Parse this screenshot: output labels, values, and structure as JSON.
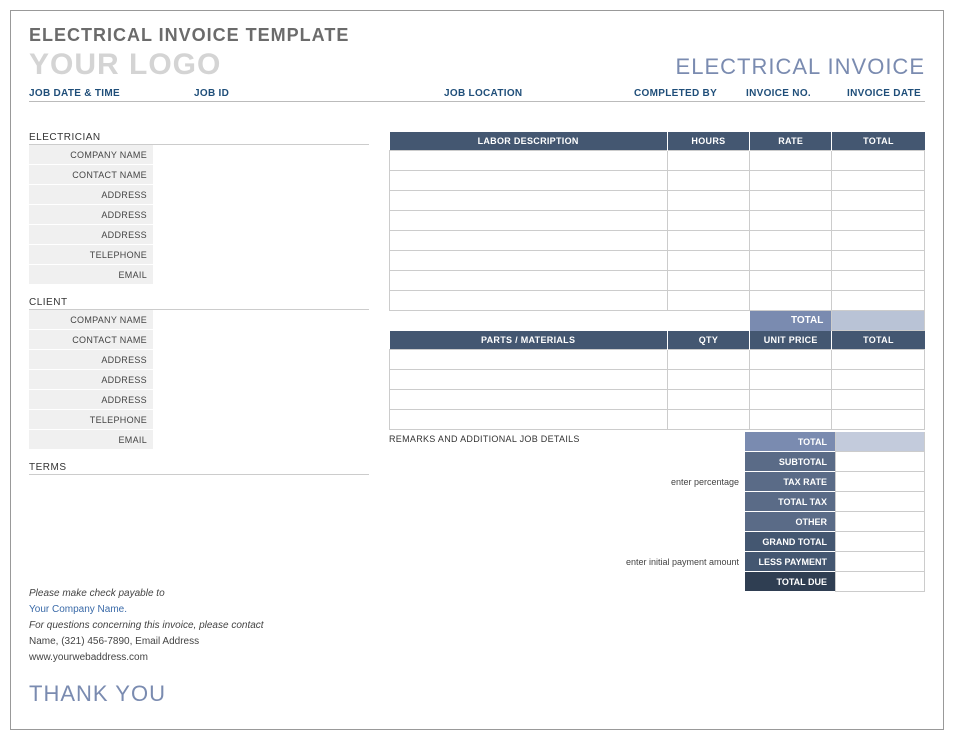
{
  "doc_title": "ELECTRICAL INVOICE TEMPLATE",
  "logo_text": "YOUR LOGO",
  "invoice_title": "ELECTRICAL INVOICE",
  "job_header": {
    "datetime": "JOB DATE & TIME",
    "jobid": "JOB ID",
    "location": "JOB LOCATION",
    "completed": "COMPLETED BY",
    "invno": "INVOICE NO.",
    "invdate": "INVOICE DATE"
  },
  "sections": {
    "electrician": "ELECTRICIAN",
    "client": "CLIENT",
    "terms": "TERMS"
  },
  "fields": {
    "company": "COMPANY NAME",
    "contact": "CONTACT NAME",
    "address": "ADDRESS",
    "telephone": "TELEPHONE",
    "email": "EMAIL"
  },
  "labor": {
    "desc": "LABOR DESCRIPTION",
    "hours": "HOURS",
    "rate": "RATE",
    "total": "TOTAL",
    "total_label": "TOTAL"
  },
  "parts": {
    "desc": "PARTS / MATERIALS",
    "qty": "QTY",
    "unit": "UNIT PRICE",
    "total": "TOTAL"
  },
  "remarks_label": "REMARKS AND ADDITIONAL JOB DETAILS",
  "hints": {
    "percentage": "enter percentage",
    "initial": "enter initial payment amount"
  },
  "summary": {
    "total": "TOTAL",
    "subtotal": "SUBTOTAL",
    "taxrate": "TAX RATE",
    "totaltax": "TOTAL TAX",
    "other": "OTHER",
    "grand": "GRAND TOTAL",
    "less": "LESS PAYMENT",
    "due": "TOTAL DUE"
  },
  "footer": {
    "payable": "Please make check payable to",
    "company": "Your Company Name.",
    "questions": "For questions concerning this invoice, please contact",
    "contact": "Name, (321) 456-7890, Email Address",
    "web": "www.yourwebaddress.com",
    "thanks": "THANK YOU"
  },
  "colors": {
    "header_bg": "#445771",
    "accent_light": "#7a8bb0",
    "accent_tint": "#b9c3d6",
    "field_bg": "#f0f0f0",
    "border": "#cccccc",
    "title_gray": "#6b6b6b",
    "logo_gray": "#d4d4d4",
    "link_blue": "#3a6aa8",
    "job_header_blue": "#1f4e79"
  }
}
